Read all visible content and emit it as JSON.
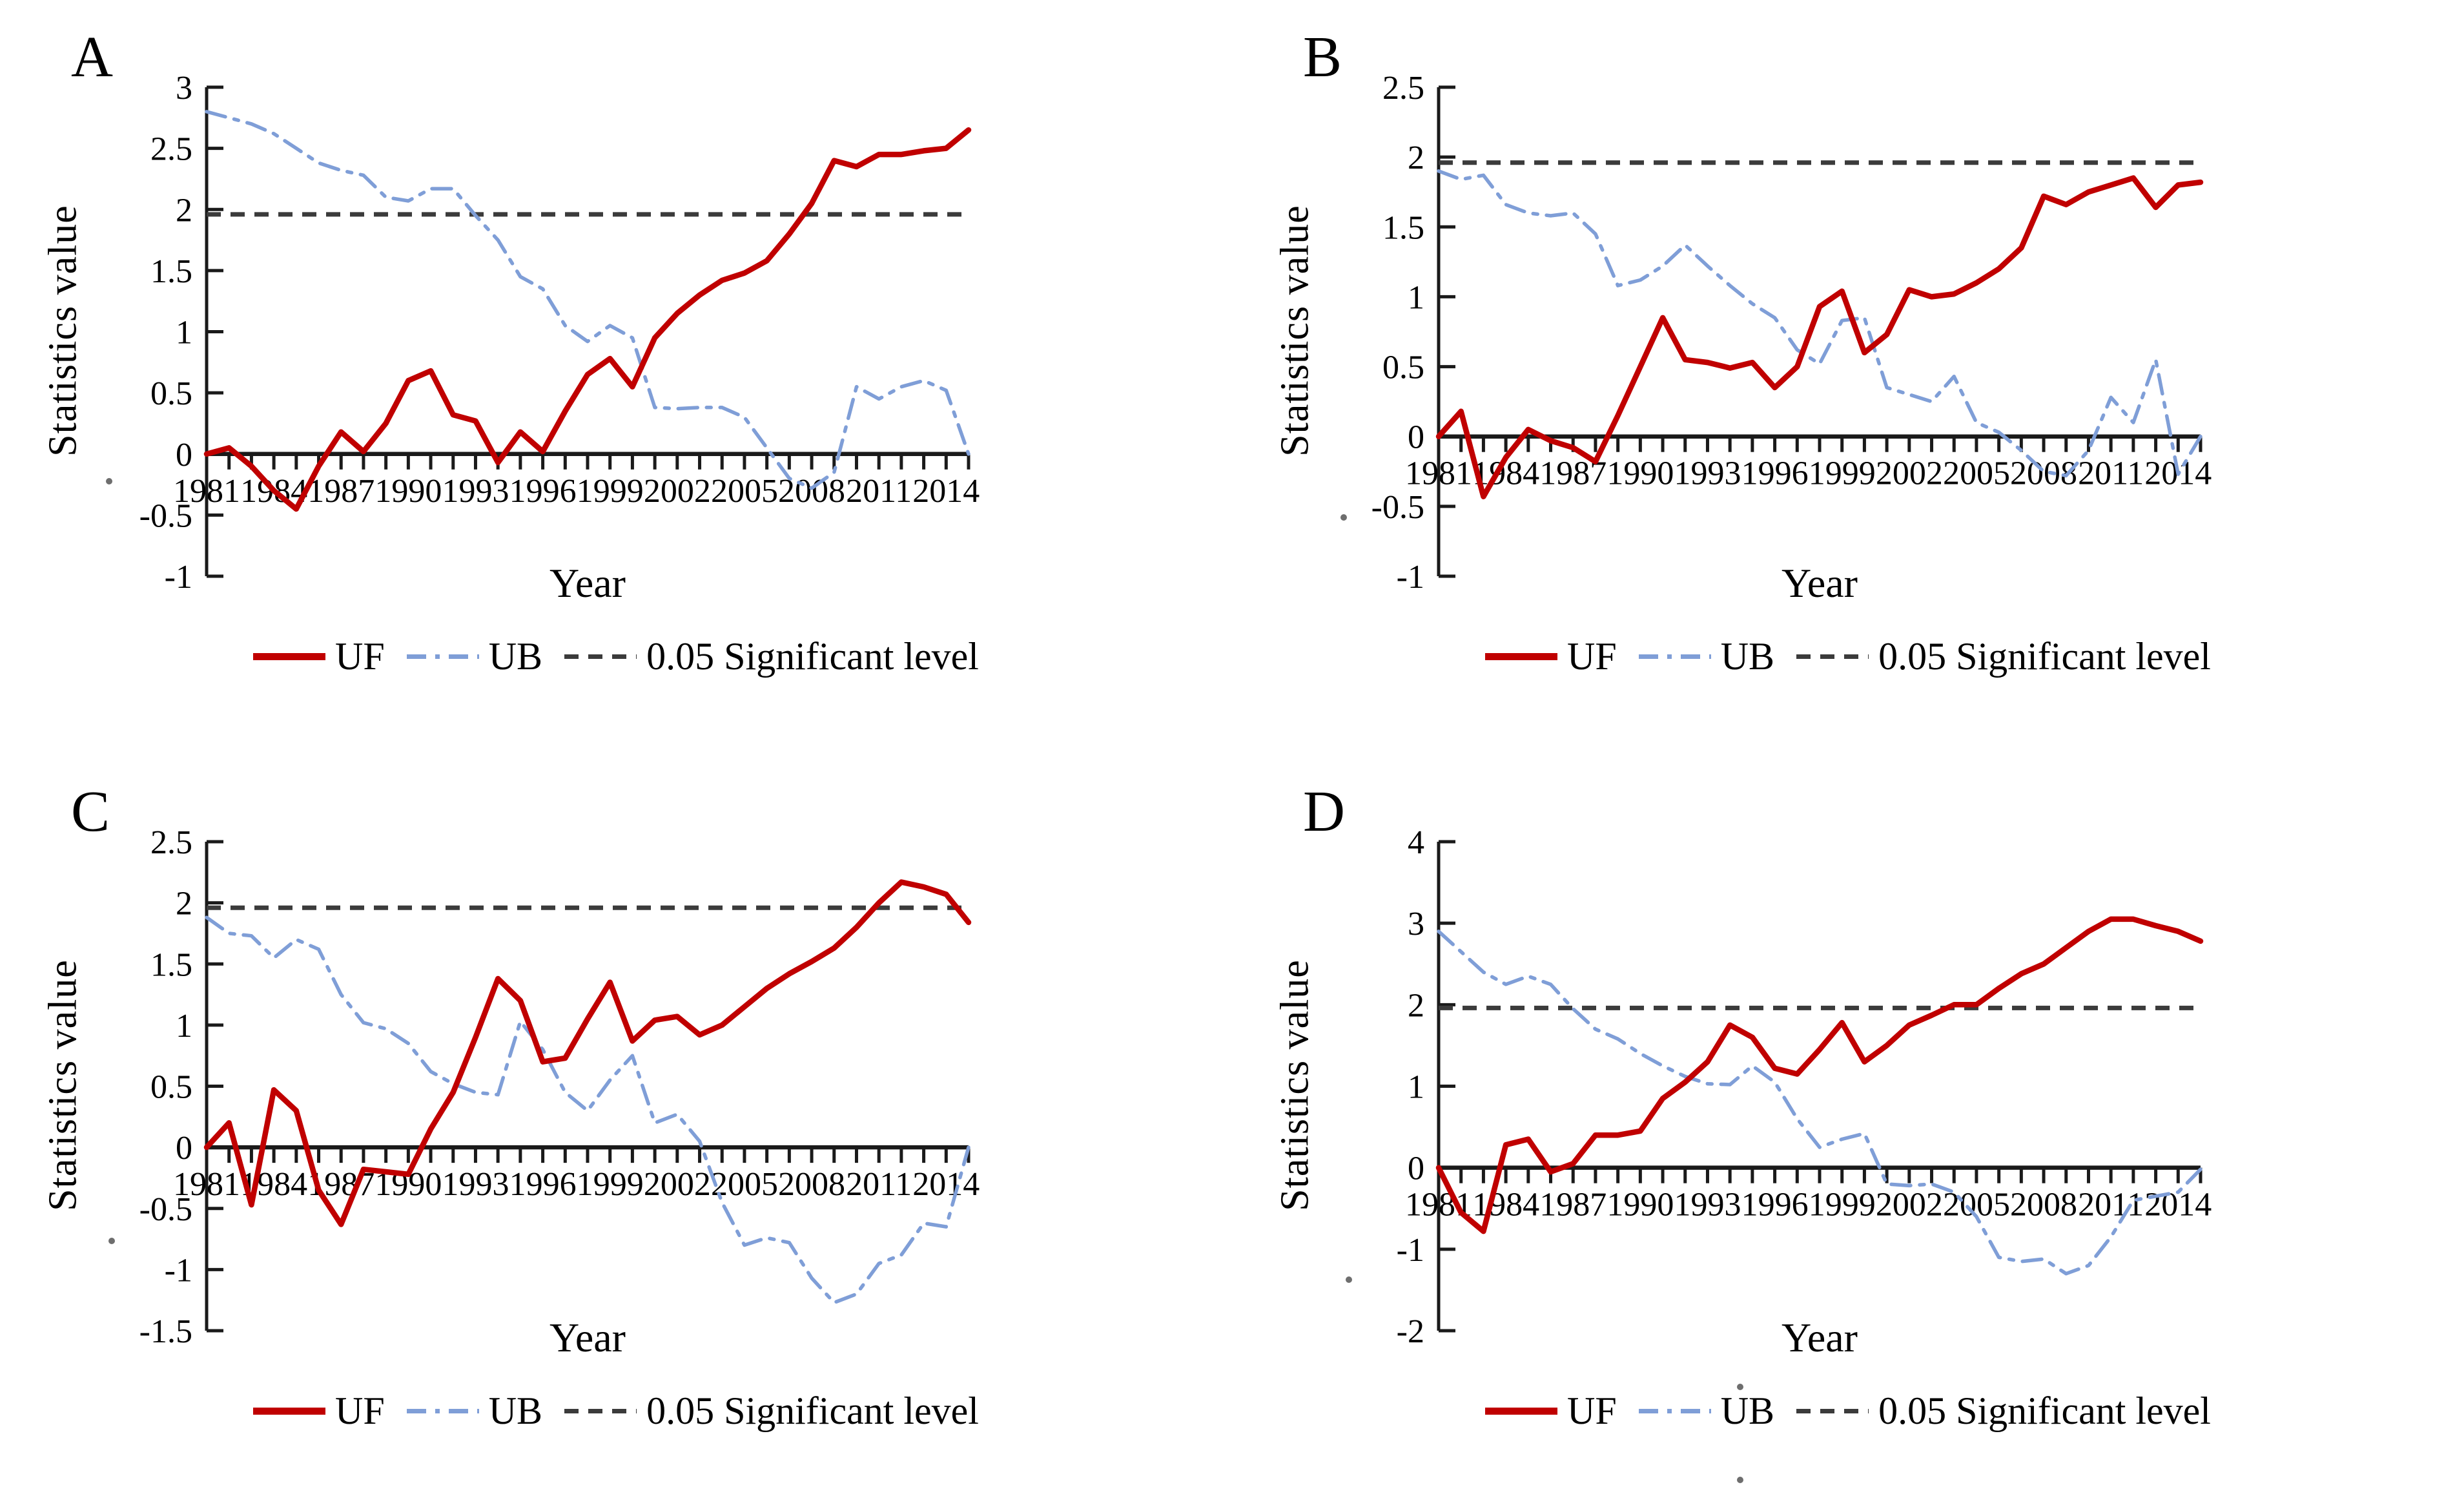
{
  "figure": {
    "ylabel": "Statistics value",
    "xlabel": "Year",
    "legend": {
      "uf": "UF",
      "ub": "UB",
      "sig": "0.05 Significant level"
    },
    "colors": {
      "uf": "#c00000",
      "ub": "#7f9ed7",
      "sig": "#3b3b3b",
      "axis": "#1a1a1a",
      "text": "#000000"
    },
    "significance_level": 1.96
  },
  "chart_data": [
    {
      "panel": "A",
      "type": "line",
      "xlabel": "Year",
      "ylabel": "Statistics value",
      "ylim": [
        -1,
        3
      ],
      "yticks": [
        3,
        2.5,
        2,
        1.5,
        1,
        0.5,
        0,
        -0.5,
        -1
      ],
      "xticks": [
        "1981",
        "1984",
        "1987",
        "1990",
        "1993",
        "1996",
        "1999",
        "2002",
        "2005",
        "2008",
        "2011",
        "2014"
      ],
      "significance_level": 1.96,
      "grid": false,
      "legend_position": "bottom",
      "x": [
        1981,
        1982,
        1983,
        1984,
        1985,
        1986,
        1987,
        1988,
        1989,
        1990,
        1991,
        1992,
        1993,
        1994,
        1995,
        1996,
        1997,
        1998,
        1999,
        2000,
        2001,
        2002,
        2003,
        2004,
        2005,
        2006,
        2007,
        2008,
        2009,
        2010,
        2011,
        2012,
        2013,
        2014,
        2015
      ],
      "series": [
        {
          "name": "UF",
          "style": "uf",
          "values": [
            0,
            0.05,
            -0.1,
            -0.3,
            -0.45,
            -0.1,
            0.18,
            0.02,
            0.25,
            0.6,
            0.68,
            0.32,
            0.27,
            -0.07,
            0.18,
            0.02,
            0.35,
            0.65,
            0.78,
            0.55,
            0.95,
            1.15,
            1.3,
            1.42,
            1.48,
            1.58,
            1.8,
            2.05,
            2.4,
            2.35,
            2.45,
            2.45,
            2.48,
            2.5,
            2.65
          ]
        },
        {
          "name": "UB",
          "style": "ub",
          "values": [
            2.8,
            2.75,
            2.7,
            2.62,
            2.5,
            2.38,
            2.32,
            2.28,
            2.1,
            2.07,
            2.17,
            2.17,
            1.95,
            1.75,
            1.45,
            1.35,
            1.05,
            0.92,
            1.05,
            0.95,
            0.38,
            0.37,
            0.38,
            0.38,
            0.3,
            0.05,
            -0.2,
            -0.28,
            -0.15,
            0.55,
            0.45,
            0.55,
            0.6,
            0.52,
            0
          ]
        }
      ]
    },
    {
      "panel": "B",
      "type": "line",
      "xlabel": "Year",
      "ylabel": "Statistics value",
      "ylim": [
        -1,
        2.5
      ],
      "yticks": [
        2.5,
        2,
        1.5,
        1,
        0.5,
        0,
        -0.5,
        -1
      ],
      "xticks": [
        "1981",
        "1984",
        "1987",
        "1990",
        "1993",
        "1996",
        "1999",
        "2002",
        "2005",
        "2008",
        "2011",
        "2014"
      ],
      "significance_level": 1.96,
      "grid": false,
      "legend_position": "bottom",
      "x": [
        1981,
        1982,
        1983,
        1984,
        1985,
        1986,
        1987,
        1988,
        1989,
        1990,
        1991,
        1992,
        1993,
        1994,
        1995,
        1996,
        1997,
        1998,
        1999,
        2000,
        2001,
        2002,
        2003,
        2004,
        2005,
        2006,
        2007,
        2008,
        2009,
        2010,
        2011,
        2012,
        2013,
        2014,
        2015
      ],
      "series": [
        {
          "name": "UF",
          "style": "uf",
          "values": [
            0,
            0.18,
            -0.43,
            -0.15,
            0.05,
            -0.03,
            -0.08,
            -0.18,
            0.15,
            0.5,
            0.85,
            0.55,
            0.53,
            0.49,
            0.53,
            0.35,
            0.5,
            0.93,
            1.04,
            0.6,
            0.73,
            1.05,
            1,
            1.02,
            1.1,
            1.2,
            1.35,
            1.72,
            1.66,
            1.75,
            1.8,
            1.85,
            1.64,
            1.8,
            1.82
          ]
        },
        {
          "name": "UB",
          "style": "ub",
          "values": [
            1.9,
            1.84,
            1.87,
            1.66,
            1.6,
            1.58,
            1.6,
            1.45,
            1.08,
            1.12,
            1.22,
            1.37,
            1.22,
            1.08,
            0.95,
            0.85,
            0.62,
            0.52,
            0.83,
            0.85,
            0.35,
            0.3,
            0.25,
            0.43,
            0.1,
            0.03,
            -0.1,
            -0.25,
            -0.28,
            -0.1,
            0.28,
            0.1,
            0.55,
            -0.27,
            0
          ]
        }
      ]
    },
    {
      "panel": "C",
      "type": "line",
      "xlabel": "Year",
      "ylabel": "Statistics value",
      "ylim": [
        -1.5,
        2.5
      ],
      "yticks": [
        2.5,
        2,
        1.5,
        1,
        0.5,
        0,
        -0.5,
        -1,
        -1.5
      ],
      "xticks": [
        "1981",
        "1984",
        "1987",
        "1990",
        "1993",
        "1996",
        "1999",
        "2002",
        "2005",
        "2008",
        "2011",
        "2014"
      ],
      "significance_level": 1.96,
      "grid": false,
      "legend_position": "bottom",
      "x": [
        1981,
        1982,
        1983,
        1984,
        1985,
        1986,
        1987,
        1988,
        1989,
        1990,
        1991,
        1992,
        1993,
        1994,
        1995,
        1996,
        1997,
        1998,
        1999,
        2000,
        2001,
        2002,
        2003,
        2004,
        2005,
        2006,
        2007,
        2008,
        2009,
        2010,
        2011,
        2012,
        2013,
        2014,
        2015
      ],
      "series": [
        {
          "name": "UF",
          "style": "uf",
          "values": [
            0,
            0.2,
            -0.47,
            0.47,
            0.3,
            -0.35,
            -0.63,
            -0.18,
            -0.2,
            -0.22,
            0.15,
            0.45,
            0.9,
            1.38,
            1.2,
            0.7,
            0.73,
            1.05,
            1.35,
            0.87,
            1.04,
            1.07,
            0.92,
            1,
            1.15,
            1.3,
            1.42,
            1.52,
            1.63,
            1.8,
            2,
            2.17,
            2.13,
            2.07,
            1.84
          ]
        },
        {
          "name": "UB",
          "style": "ub",
          "values": [
            1.88,
            1.75,
            1.73,
            1.55,
            1.7,
            1.62,
            1.25,
            1.02,
            0.97,
            0.85,
            0.62,
            0.52,
            0.45,
            0.43,
            1.03,
            0.8,
            0.45,
            0.3,
            0.55,
            0.75,
            0.2,
            0.27,
            0.05,
            -0.45,
            -0.8,
            -0.74,
            -0.78,
            -1.07,
            -1.27,
            -1.2,
            -0.95,
            -0.88,
            -0.62,
            -0.65,
            0
          ]
        }
      ]
    },
    {
      "panel": "D",
      "type": "line",
      "xlabel": "Year",
      "ylabel": "Statistics value",
      "ylim": [
        -2,
        4
      ],
      "yticks": [
        4,
        3,
        2,
        1,
        0,
        -1,
        -2
      ],
      "xticks": [
        "1981",
        "1984",
        "1987",
        "1990",
        "1993",
        "1996",
        "1999",
        "2002",
        "2005",
        "2008",
        "2011",
        "2014"
      ],
      "significance_level": 1.96,
      "grid": false,
      "legend_position": "bottom",
      "x": [
        1981,
        1982,
        1983,
        1984,
        1985,
        1986,
        1987,
        1988,
        1989,
        1990,
        1991,
        1992,
        1993,
        1994,
        1995,
        1996,
        1997,
        1998,
        1999,
        2000,
        2001,
        2002,
        2003,
        2004,
        2005,
        2006,
        2007,
        2008,
        2009,
        2010,
        2011,
        2012,
        2013,
        2014,
        2015
      ],
      "series": [
        {
          "name": "UF",
          "style": "uf",
          "values": [
            0,
            -0.55,
            -0.78,
            0.28,
            0.35,
            -0.05,
            0.05,
            0.4,
            0.4,
            0.45,
            0.85,
            1.05,
            1.3,
            1.75,
            1.6,
            1.22,
            1.15,
            1.45,
            1.78,
            1.3,
            1.5,
            1.75,
            1.87,
            2,
            2,
            2.2,
            2.38,
            2.5,
            2.7,
            2.9,
            3.05,
            3.05,
            2.97,
            2.9,
            2.78
          ]
        },
        {
          "name": "UB",
          "style": "ub",
          "values": [
            2.9,
            2.65,
            2.4,
            2.25,
            2.35,
            2.25,
            1.95,
            1.7,
            1.58,
            1.4,
            1.25,
            1.12,
            1.03,
            1.02,
            1.25,
            1.05,
            0.6,
            0.25,
            0.35,
            0.42,
            -0.2,
            -0.22,
            -0.2,
            -0.3,
            -0.6,
            -1.1,
            -1.15,
            -1.12,
            -1.3,
            -1.2,
            -0.85,
            -0.4,
            -0.35,
            -0.3,
            -0.02
          ]
        }
      ]
    }
  ]
}
